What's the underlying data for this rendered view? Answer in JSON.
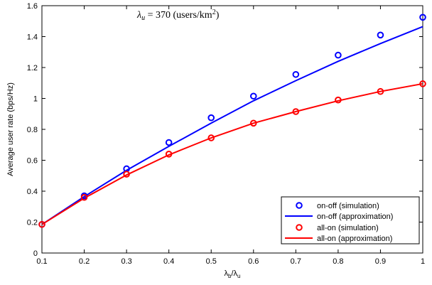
{
  "chart_data": {
    "type": "line",
    "xlabel": "λ_b/λ_u",
    "ylabel": "Average user rate (bps/Hz)",
    "xlim": [
      0.1,
      1.0
    ],
    "ylim": [
      0,
      1.6
    ],
    "x_ticks": [
      "0.1",
      "0.2",
      "0.3",
      "0.4",
      "0.5",
      "0.6",
      "0.7",
      "0.8",
      "0.9",
      "1"
    ],
    "y_ticks": [
      "0",
      "0.2",
      "0.4",
      "0.6",
      "0.8",
      "1",
      "1.2",
      "1.4",
      "1.6"
    ],
    "annotation": "λu = 370 (users/km²)",
    "grid": false,
    "legend_position": "bottom-right",
    "colors": {
      "on_off": "#0000ff",
      "all_on": "#ff0000"
    },
    "x": [
      0.1,
      0.2,
      0.3,
      0.4,
      0.5,
      0.6,
      0.7,
      0.8,
      0.9,
      1.0
    ],
    "series": [
      {
        "name": "on-off (simulation)",
        "style": "markers",
        "marker": "circle",
        "color": "#0000ff",
        "values": [
          0.185,
          0.37,
          0.545,
          0.715,
          0.875,
          1.015,
          1.155,
          1.28,
          1.41,
          1.525
        ]
      },
      {
        "name": "on-off (approximation)",
        "style": "line",
        "color": "#0000ff",
        "values": [
          0.185,
          0.365,
          0.535,
          0.69,
          0.84,
          0.985,
          1.115,
          1.24,
          1.355,
          1.465
        ]
      },
      {
        "name": "all-on (simulation)",
        "style": "markers",
        "marker": "circle",
        "color": "#ff0000",
        "values": [
          0.185,
          0.36,
          0.51,
          0.64,
          0.745,
          0.84,
          0.915,
          0.99,
          1.045,
          1.095
        ]
      },
      {
        "name": "all-on (approximation)",
        "style": "line",
        "color": "#ff0000",
        "values": [
          0.185,
          0.355,
          0.505,
          0.635,
          0.745,
          0.84,
          0.915,
          0.985,
          1.045,
          1.095
        ]
      }
    ]
  }
}
